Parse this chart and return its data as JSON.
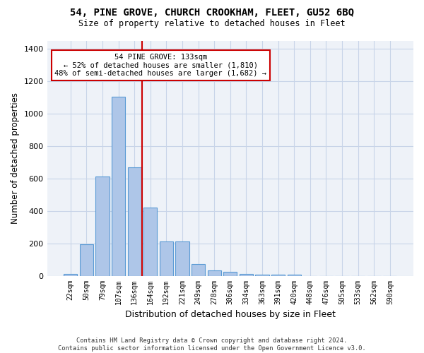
{
  "title": "54, PINE GROVE, CHURCH CROOKHAM, FLEET, GU52 6BQ",
  "subtitle": "Size of property relative to detached houses in Fleet",
  "xlabel": "Distribution of detached houses by size in Fleet",
  "ylabel": "Number of detached properties",
  "annotation_title": "54 PINE GROVE: 133sqm",
  "annotation_line1": "← 52% of detached houses are smaller (1,810)",
  "annotation_line2": "48% of semi-detached houses are larger (1,682) →",
  "footer_line1": "Contains HM Land Registry data © Crown copyright and database right 2024.",
  "footer_line2": "Contains public sector information licensed under the Open Government Licence v3.0.",
  "bin_labels": [
    "22sqm",
    "50sqm",
    "79sqm",
    "107sqm",
    "136sqm",
    "164sqm",
    "192sqm",
    "221sqm",
    "249sqm",
    "278sqm",
    "306sqm",
    "334sqm",
    "363sqm",
    "391sqm",
    "420sqm",
    "448sqm",
    "476sqm",
    "505sqm",
    "533sqm",
    "562sqm",
    "590sqm"
  ],
  "bar_values": [
    15,
    195,
    615,
    1105,
    670,
    420,
    215,
    215,
    75,
    35,
    28,
    15,
    10,
    8,
    10,
    0,
    0,
    0,
    0,
    0,
    0
  ],
  "bar_color": "#aec6e8",
  "bar_edge_color": "#5b9bd5",
  "vline_x": 4.5,
  "vline_color": "#cc0000",
  "annotation_box_color": "#cc0000",
  "ylim": [
    0,
    1450
  ],
  "yticks": [
    0,
    200,
    400,
    600,
    800,
    1000,
    1200,
    1400
  ],
  "grid_color": "#c8d4e8",
  "plot_bg_color": "#eef2f8"
}
